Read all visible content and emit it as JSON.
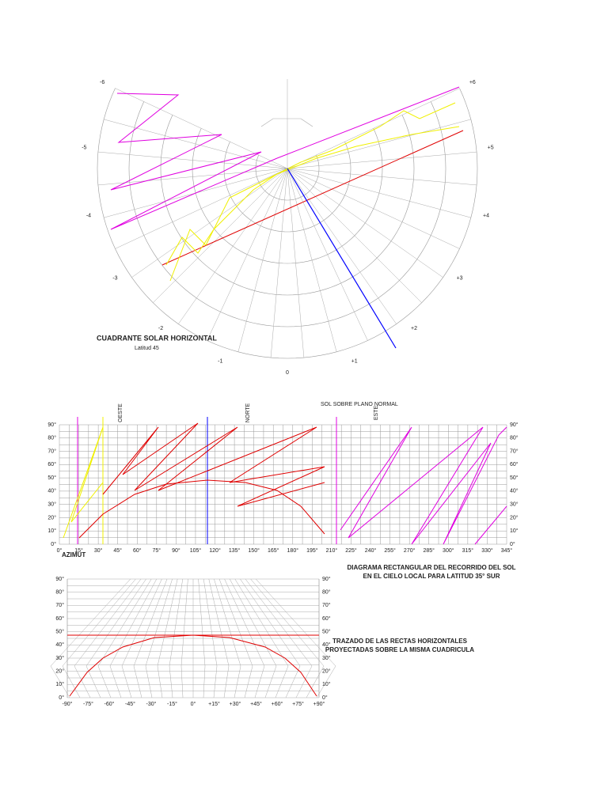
{
  "quadrant": {
    "title": "CUADRANTE SOLAR HORIZONTAL",
    "subtitle": "Latitud 45",
    "hour_labels": [
      "-6",
      "-5",
      "-4",
      "-3",
      "-2",
      "-1",
      "0",
      "+1",
      "+2",
      "+3",
      "+4",
      "+5",
      "+6"
    ]
  },
  "rectangular": {
    "header": "SOL SOBRE PLANO NORMAL",
    "directions": [
      "OESTE",
      "NORTE",
      "ESTE"
    ],
    "y_labels": [
      "90°",
      "80°",
      "70°",
      "60°",
      "50°",
      "40°",
      "30°",
      "20°",
      "10°",
      "0°"
    ],
    "x_labels": [
      "0°",
      "15°",
      "30°",
      "45°",
      "60°",
      "75°",
      "90°",
      "105°",
      "120°",
      "135°",
      "150°",
      "165°",
      "180°",
      "195°",
      "210°",
      "225°",
      "240°",
      "255°",
      "270°",
      "285°",
      "300°",
      "315°",
      "330°",
      "345°"
    ],
    "axis_label": "AZIMUT",
    "caption": [
      "DIAGRAMA RECTANGULAR DEL RECORRIDO DEL SOL",
      "EN EL CIELO LOCAL PARA LATITUD 35° SUR"
    ]
  },
  "projection": {
    "y_labels": [
      "90°",
      "80°",
      "70°",
      "60°",
      "50°",
      "40°",
      "30°",
      "20°",
      "10°",
      "0°"
    ],
    "x_labels": [
      "-90°",
      "-75°",
      "-60°",
      "-45°",
      "-30°",
      "-15°",
      "0°",
      "+15°",
      "+30°",
      "+45°",
      "+60°",
      "+75°",
      "+90°"
    ],
    "caption": [
      "TRAZADO DE LAS RECTAS HORIZONTALES",
      "PROYECTADAS SOBRE LA MISMA CUADRICULA"
    ]
  }
}
